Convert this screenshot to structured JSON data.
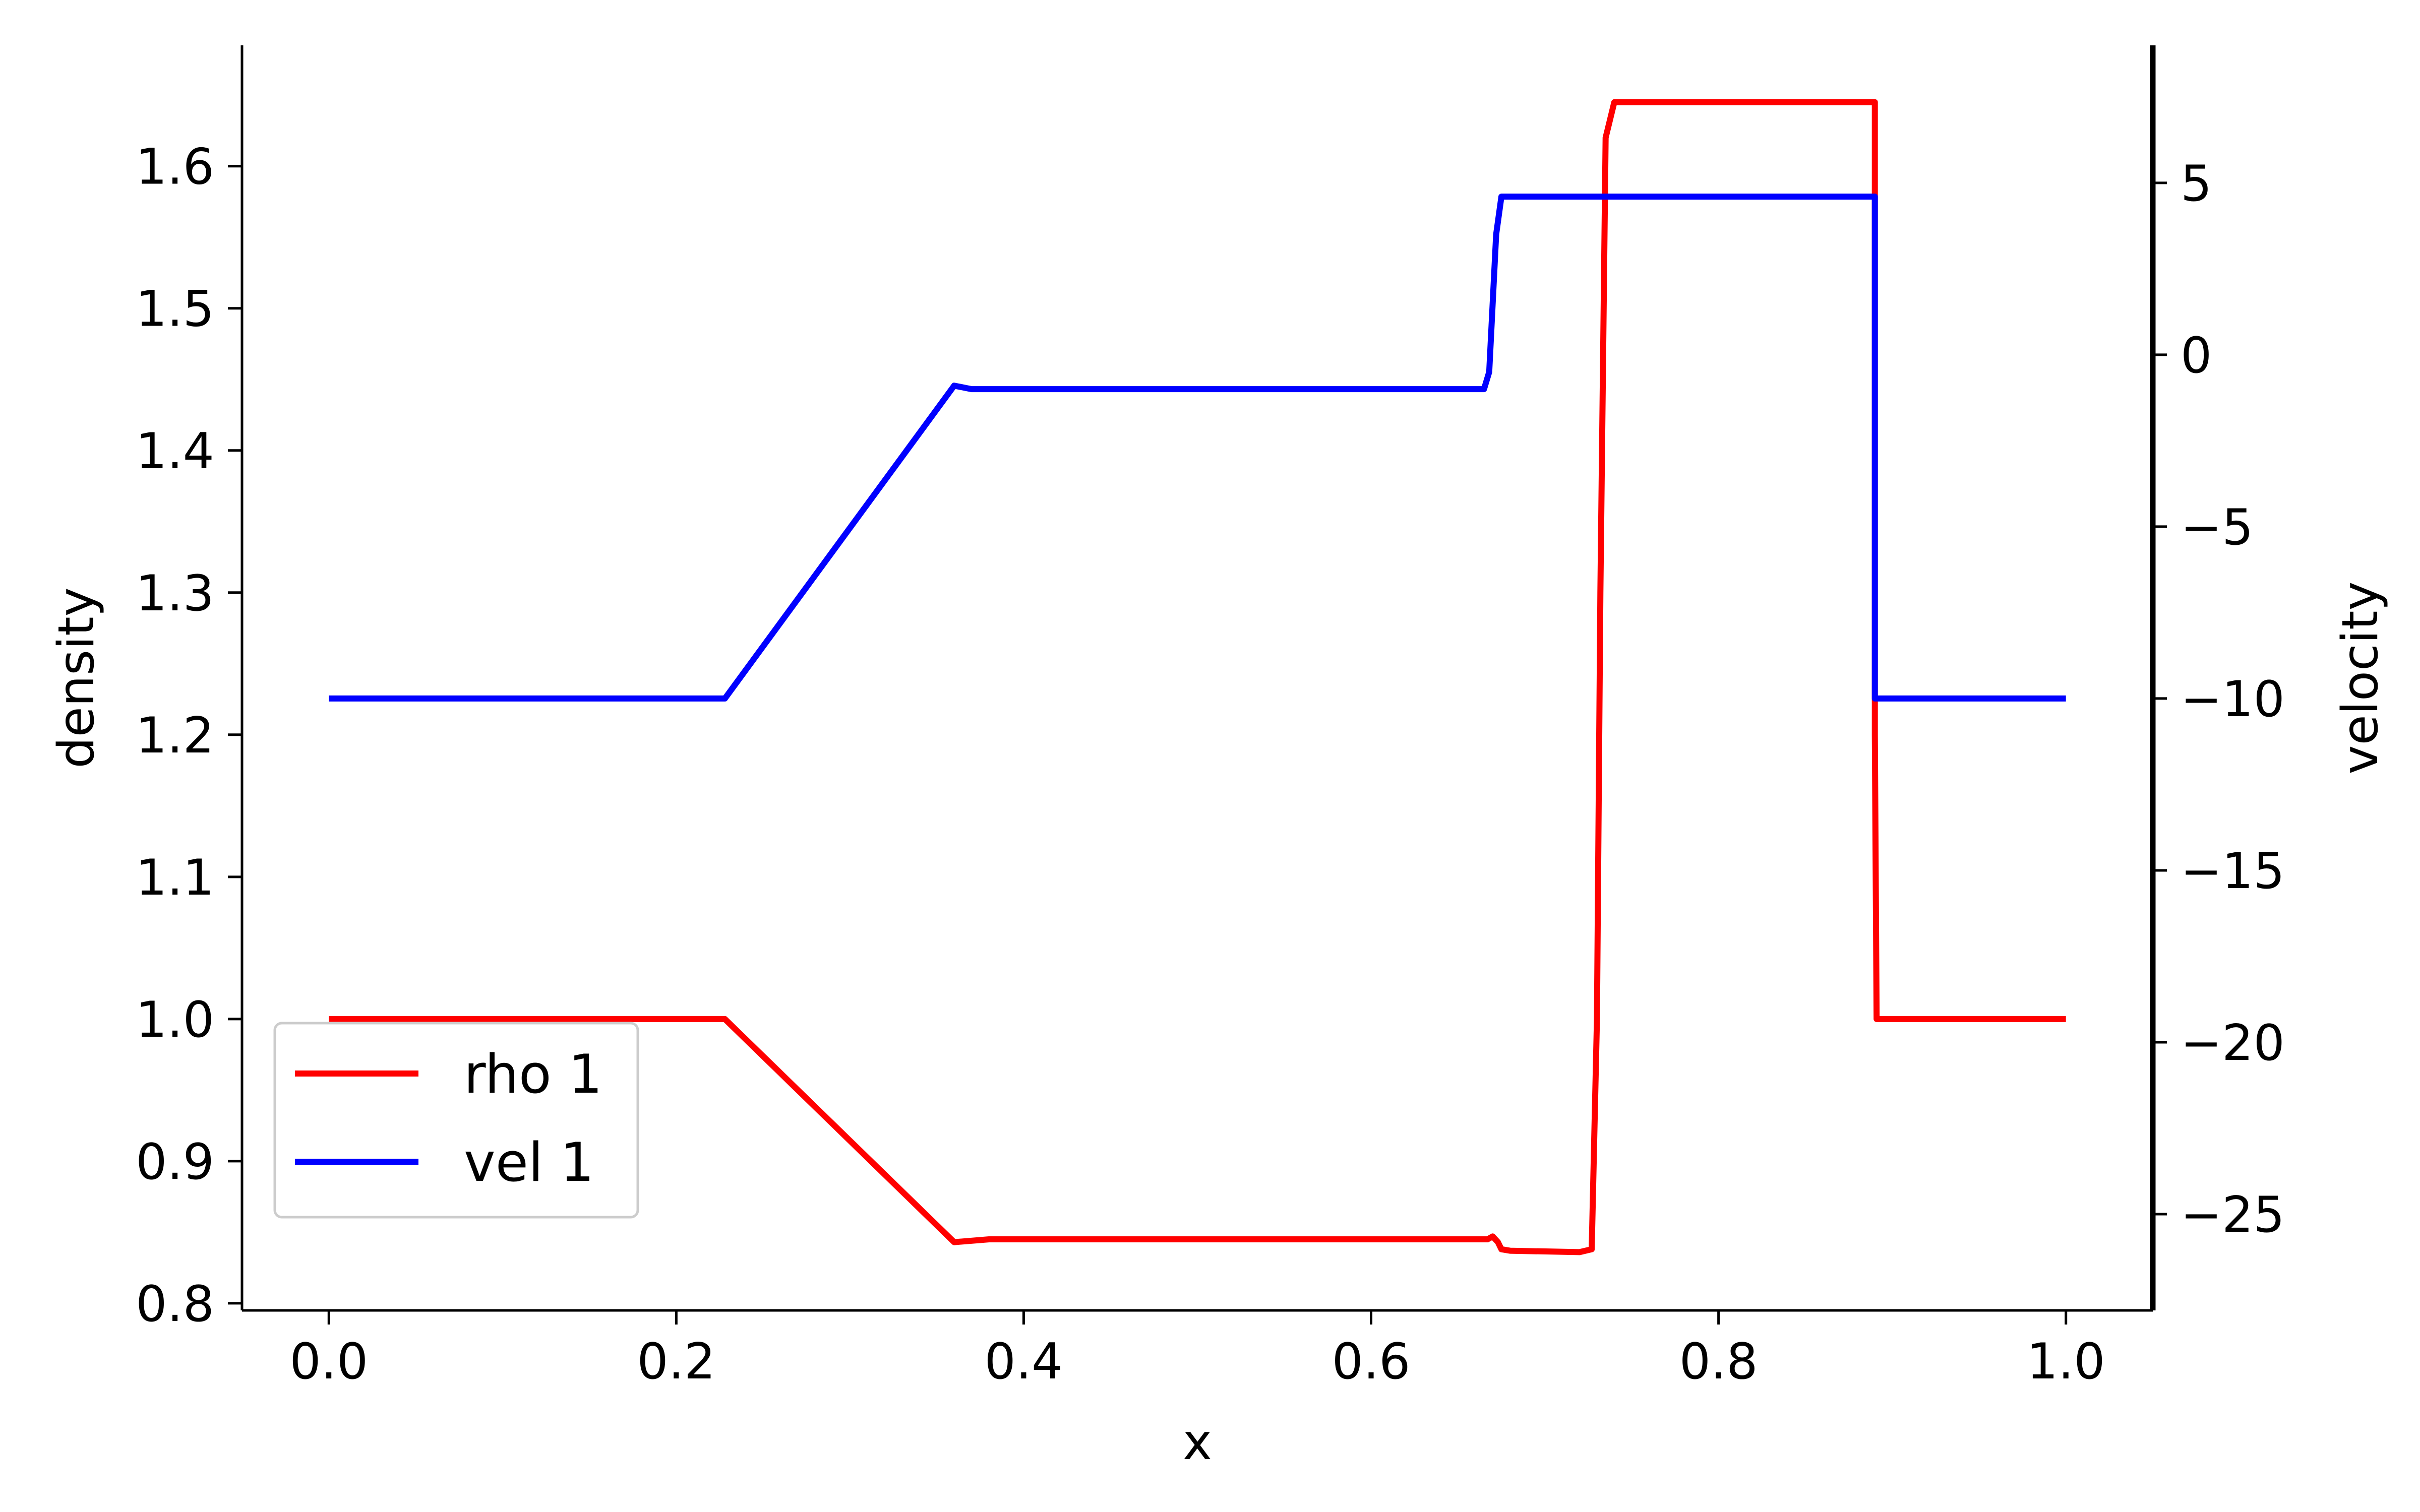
{
  "chart_data": {
    "type": "line",
    "xlabel": "x",
    "ylabel_left": "density",
    "ylabel_right": "velocity",
    "xlim": [
      -0.05,
      1.05
    ],
    "ylim_left": [
      0.795,
      1.685
    ],
    "ylim_right": [
      -27.8,
      9.0
    ],
    "x_ticks": [
      0.0,
      0.2,
      0.4,
      0.6,
      0.8,
      1.0
    ],
    "x_tick_labels": [
      "0.0",
      "0.2",
      "0.4",
      "0.6",
      "0.8",
      "1.0"
    ],
    "left_ticks": [
      0.8,
      0.9,
      1.0,
      1.1,
      1.2,
      1.3,
      1.4,
      1.5,
      1.6
    ],
    "left_tick_labels": [
      "0.8",
      "0.9",
      "1.0",
      "1.1",
      "1.2",
      "1.3",
      "1.4",
      "1.5",
      "1.6"
    ],
    "right_ticks": [
      5,
      0,
      -5,
      -10,
      -15,
      -20,
      -25
    ],
    "right_tick_labels": [
      "5",
      "0",
      "−5",
      "−10",
      "−15",
      "−20",
      "−25"
    ],
    "legend_position": "lower-left",
    "grid": false,
    "series": [
      {
        "name": "rho 1",
        "axis": "left",
        "color": "#ff0000",
        "x": [
          0.0,
          0.228,
          0.36,
          0.38,
          0.667,
          0.67,
          0.673,
          0.675,
          0.68,
          0.72,
          0.727,
          0.73,
          0.732,
          0.735,
          0.74,
          0.75,
          0.89,
          0.89,
          0.891,
          1.0
        ],
        "y": [
          1.0,
          1.0,
          0.843,
          0.845,
          0.845,
          0.847,
          0.843,
          0.838,
          0.837,
          0.836,
          0.838,
          1.0,
          1.3,
          1.62,
          1.645,
          1.645,
          1.645,
          1.2,
          1.0,
          1.0
        ]
      },
      {
        "name": "vel 1",
        "axis": "right",
        "color": "#0000ff",
        "x": [
          0.0,
          0.228,
          0.36,
          0.37,
          0.665,
          0.668,
          0.672,
          0.675,
          0.89,
          0.89,
          1.0
        ],
        "y": [
          -10.0,
          -10.0,
          -0.9,
          -1.0,
          -1.0,
          -0.5,
          3.5,
          4.6,
          4.6,
          -10.0,
          -10.0
        ]
      }
    ]
  }
}
